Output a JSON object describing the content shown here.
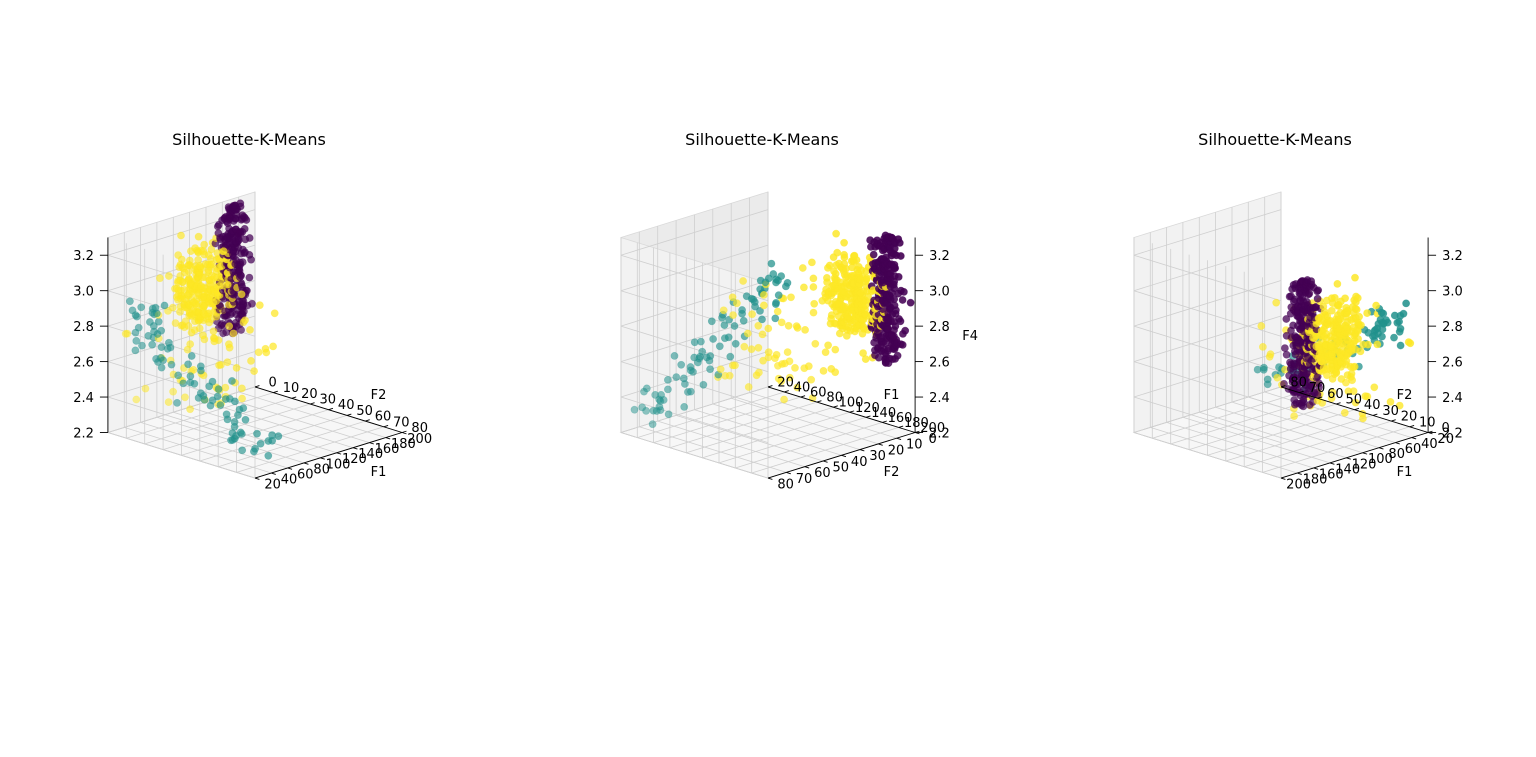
{
  "chart_data": [
    {
      "type": "scatter",
      "title": "Silhouette-K-Means",
      "axis_labels": {
        "x": "F1",
        "y": "F2",
        "z": ""
      },
      "xlim": [
        20,
        200
      ],
      "ylim": [
        0,
        80
      ],
      "zlim": [
        2.2,
        3.3
      ],
      "xticks": [
        "20",
        "40",
        "60",
        "80",
        "100",
        "120",
        "140",
        "160",
        "180",
        "200"
      ],
      "yticks": [
        "0",
        "10",
        "20",
        "30",
        "40",
        "50",
        "60",
        "70",
        "80"
      ],
      "zticks": [
        "2.2",
        "2.4",
        "2.6",
        "2.8",
        "3.0",
        "3.2"
      ],
      "view": {
        "elev": 30,
        "azim": 45
      },
      "grid": true,
      "series_colors": [
        "#440154",
        "#21918c",
        "#fde725"
      ]
    },
    {
      "type": "scatter",
      "title": "Silhouette-K-Means",
      "axis_labels": {
        "x": "F1",
        "y": "F2",
        "z": "F4"
      },
      "xlim": [
        20,
        200
      ],
      "ylim": [
        0,
        80
      ],
      "zlim": [
        2.2,
        3.3
      ],
      "xticks": [
        "20",
        "40",
        "60",
        "80",
        "100",
        "120",
        "140",
        "160",
        "180",
        "200"
      ],
      "yticks": [
        "0",
        "10",
        "20",
        "30",
        "40",
        "50",
        "60",
        "70",
        "80"
      ],
      "zticks": [
        "2.2",
        "2.4",
        "2.6",
        "2.8",
        "3.0",
        "3.2"
      ],
      "view": {
        "elev": 30,
        "azim": -45
      },
      "grid": true,
      "series_colors": [
        "#440154",
        "#21918c",
        "#fde725"
      ]
    },
    {
      "type": "scatter",
      "title": "Silhouette-K-Means",
      "axis_labels": {
        "x": "F1",
        "y": "F2",
        "z": ""
      },
      "xlim": [
        20,
        200
      ],
      "ylim": [
        0,
        80
      ],
      "zlim": [
        2.2,
        3.3
      ],
      "xticks": [
        "20",
        "40",
        "60",
        "80",
        "100",
        "120",
        "140",
        "160",
        "180",
        "200"
      ],
      "yticks": [
        "0",
        "10",
        "20",
        "30",
        "40",
        "50",
        "60",
        "70",
        "80"
      ],
      "zticks": [
        "2.2",
        "2.4",
        "2.6",
        "2.8",
        "3.0",
        "3.2"
      ],
      "view": {
        "elev": 30,
        "azim": -135
      },
      "grid": true,
      "series_colors": [
        "#440154",
        "#21918c",
        "#fde725"
      ]
    }
  ]
}
